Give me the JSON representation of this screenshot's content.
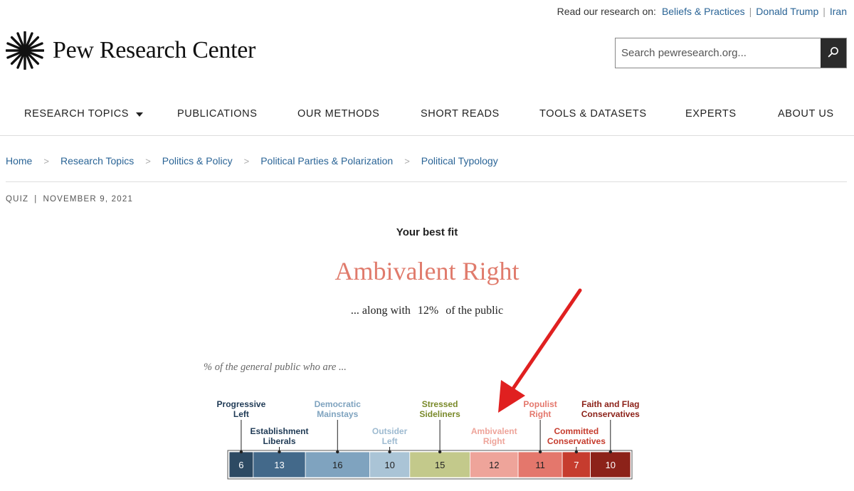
{
  "topbar": {
    "lead": "Read our research on:",
    "links": [
      "Beliefs & Practices",
      "Donald Trump",
      "Iran"
    ],
    "link_color": "#2a6496"
  },
  "logo": {
    "text": "Pew Research Center",
    "icon": "sunburst-icon"
  },
  "search": {
    "placeholder": "Search pewresearch.org...",
    "button_icon": "search-icon"
  },
  "nav": {
    "items": [
      "RESEARCH TOPICS",
      "PUBLICATIONS",
      "OUR METHODS",
      "SHORT READS",
      "TOOLS & DATASETS",
      "EXPERTS",
      "ABOUT US"
    ],
    "dropdown_icon": "caret-down-icon"
  },
  "breadcrumb": {
    "items": [
      "Home",
      "Research Topics",
      "Politics & Policy",
      "Political Parties & Polarization",
      "Political Typology"
    ],
    "separator": ">"
  },
  "meta": {
    "type": "QUIZ",
    "separator": "|",
    "date": "NOVEMBER 9, 2021"
  },
  "result": {
    "label": "Your best fit",
    "title": "Ambivalent Right",
    "title_color": "#e07b6c",
    "along_prefix": "... along with",
    "along_pct": "12%",
    "along_suffix": "of the public"
  },
  "chart_caption": "% of the general public who are ...",
  "chart_data": {
    "type": "bar",
    "orientation": "horizontal-stacked",
    "unit": "%",
    "categories": [
      "Progressive Left",
      "Establishment Liberals",
      "Democratic Mainstays",
      "Outsider Left",
      "Stressed Sideliners",
      "Ambivalent Right",
      "Populist Right",
      "Committed Conservatives",
      "Faith and Flag Conservatives"
    ],
    "label_lines": [
      [
        "Progressive",
        "Left"
      ],
      [
        "Establishment",
        "Liberals"
      ],
      [
        "Democratic",
        "Mainstays"
      ],
      [
        "Outsider",
        "Left"
      ],
      [
        "Stressed",
        "Sideliners"
      ],
      [
        "Ambivalent",
        "Right"
      ],
      [
        "Populist",
        "Right"
      ],
      [
        "Committed",
        "Conservatives"
      ],
      [
        "Faith and Flag",
        "Conservatives"
      ]
    ],
    "values": [
      6,
      13,
      16,
      10,
      15,
      12,
      11,
      7,
      10
    ],
    "colors": [
      "#2d4a63",
      "#43698a",
      "#7fa3bf",
      "#aac4d6",
      "#c3c98b",
      "#eea49a",
      "#e4776c",
      "#c63c2e",
      "#8c2219"
    ],
    "label_colors": [
      "#1f3a55",
      "#1f3a55",
      "#7fa3bf",
      "#9dbad0",
      "#7a8a2a",
      "#eea49a",
      "#e4776c",
      "#c63c2e",
      "#8c2219"
    ],
    "text_colors": [
      "#ffffff",
      "#ffffff",
      "#222222",
      "#222222",
      "#222222",
      "#222222",
      "#222222",
      "#ffffff",
      "#ffffff"
    ],
    "label_tier": [
      "top",
      "low",
      "top",
      "low",
      "top",
      "low",
      "top",
      "low",
      "top"
    ],
    "highlight": "Ambivalent Right",
    "annotation": {
      "type": "arrow",
      "target": "Ambivalent Right",
      "color": "#e02020"
    }
  }
}
